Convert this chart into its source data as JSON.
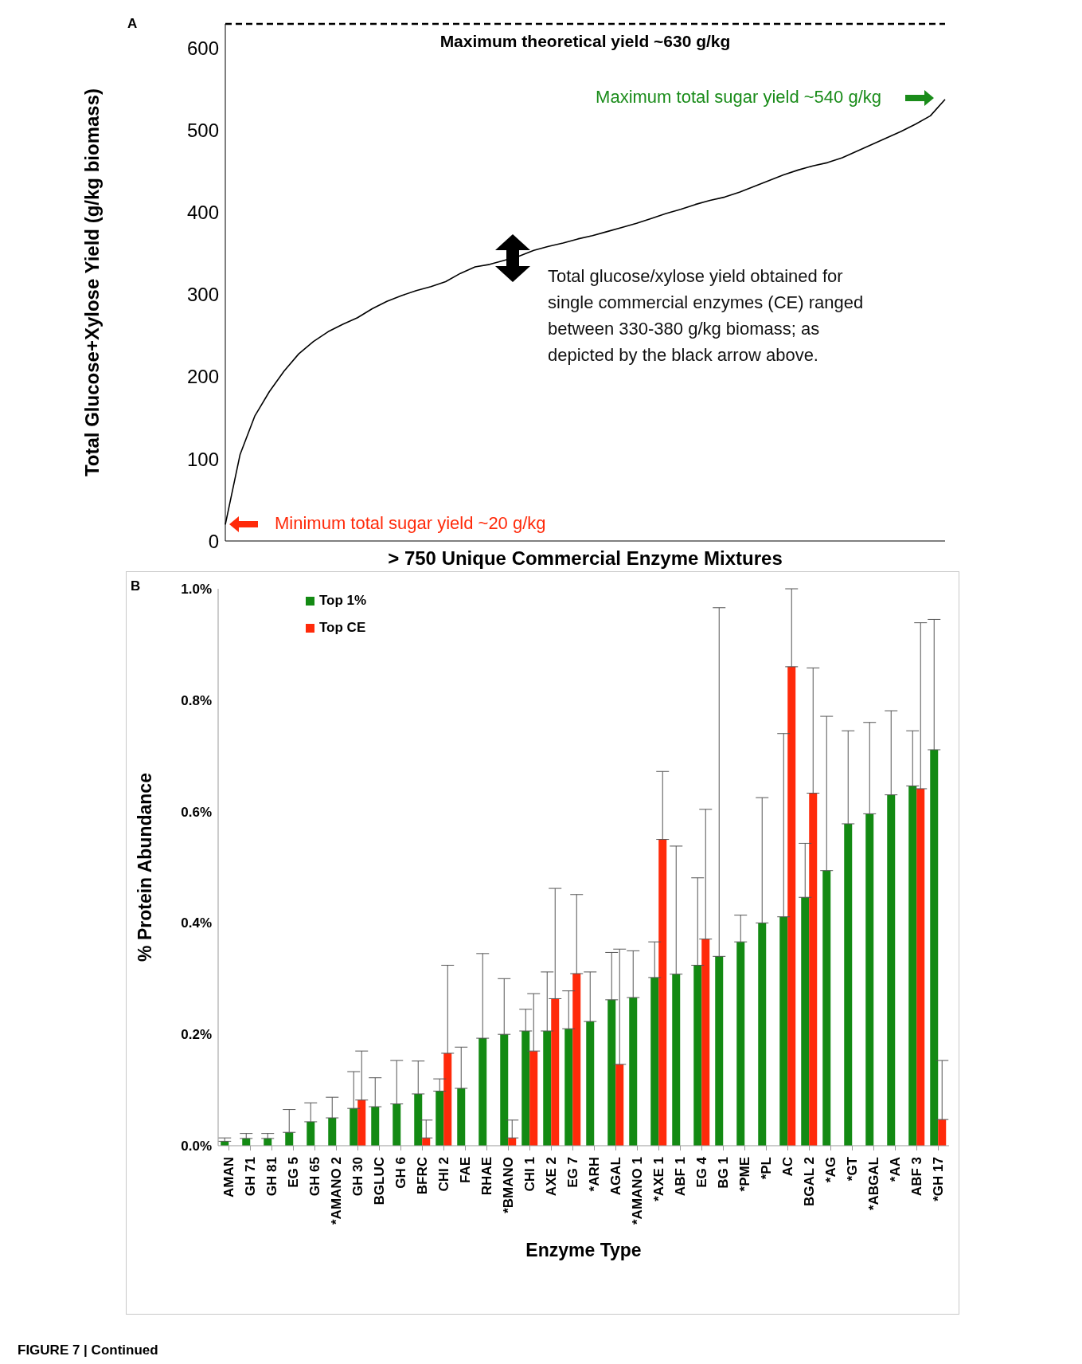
{
  "chart_data": [
    {
      "type": "line",
      "title": "A",
      "xlabel": "> 750 Unique Commercial Enzyme Mixtures",
      "ylabel": "Total Glucose+Xylose Yield (g/kg biomass)",
      "categories": [
        null,
        null,
        null,
        null,
        null,
        null,
        null,
        null,
        null,
        null,
        null,
        null,
        null,
        null,
        null,
        null,
        null,
        null,
        null,
        null,
        null,
        null,
        null,
        null,
        null,
        null,
        null,
        null,
        null,
        null,
        null,
        null,
        null,
        null,
        null,
        null,
        null,
        null,
        null,
        null,
        null,
        null,
        null,
        null,
        null,
        null,
        null,
        null,
        null,
        null
      ],
      "series": [
        {
          "color": "#000000",
          "values": [
            20,
            105,
            152,
            182,
            207,
            228,
            243,
            255,
            264,
            272,
            283,
            292,
            299,
            305,
            310,
            316,
            326,
            334,
            337,
            342,
            347,
            354,
            359,
            363,
            368,
            372,
            377,
            382,
            387,
            393,
            399,
            404,
            410,
            415,
            419,
            425,
            432,
            439,
            446,
            452,
            457,
            461,
            467,
            475,
            483,
            491,
            499,
            508,
            518,
            538
          ]
        }
      ],
      "ylim": [
        0,
        630
      ],
      "yticks": [
        0,
        100,
        200,
        300,
        400,
        500,
        600
      ],
      "marker": "none",
      "line_style": "solid",
      "ref_lines": [
        {
          "axis": "y",
          "value": 630,
          "label": "Maximum theoretical yield ~630 g/kg",
          "color": "#000000",
          "line_style": "dashed"
        }
      ],
      "annotations": [
        "Maximum total sugar yield ~540 g/kg",
        "Total glucose/xylose yield obtained for single commercial enzymes (CE) ranged between 330-380 g/kg biomass; as depicted by the black arrow above.",
        "Minimum total sugar yield ~20 g/kg"
      ]
    },
    {
      "type": "bar",
      "title": "B",
      "xlabel": "Enzyme Type",
      "ylabel": "% Protein Abundance",
      "categories": [
        "AMAN",
        "GH 71",
        "GH 81",
        "EG 5",
        "GH 65",
        "*AMANO 2",
        "GH 30",
        "BGLUC",
        "GH 6",
        "BFRC",
        "CHI 2",
        "FAE",
        "RHAE",
        "*BMANO",
        "CHI 1",
        "AXE 2",
        "EG 7",
        "*ARH",
        "AGAL",
        "*AMANO 1",
        "*AXE 1",
        "ABF 1",
        "EG 4",
        "BG 1",
        "*PME",
        "*PL",
        "AC",
        "BGAL 2",
        "*AG",
        "*GT",
        "*ABGAL",
        "*AA",
        "ABF 3",
        "*GH 17"
      ],
      "series": [
        {
          "name": "Top 1%",
          "color": "#138a13",
          "values": [
            0.008,
            0.013,
            0.013,
            0.024,
            0.043,
            0.05,
            0.067,
            0.07,
            0.075,
            0.093,
            0.098,
            0.103,
            0.193,
            0.2,
            0.206,
            0.206,
            0.21,
            0.223,
            0.262,
            0.266,
            0.302,
            0.308,
            0.324,
            0.34,
            0.366,
            0.4,
            0.411,
            0.446,
            0.494,
            0.578,
            0.596,
            0.63,
            0.646,
            0.711
          ],
          "errors": [
            [
              0.008,
              0.014
            ],
            [
              0.013,
              0.022
            ],
            [
              0.013,
              0.022
            ],
            [
              0.024,
              0.065
            ],
            [
              0.043,
              0.077
            ],
            [
              0.05,
              0.087
            ],
            [
              0.067,
              0.133
            ],
            [
              0.07,
              0.122
            ],
            [
              0.075,
              0.153
            ],
            [
              0.093,
              0.152
            ],
            [
              0.098,
              0.12
            ],
            [
              0.103,
              0.177
            ],
            [
              0.193,
              0.345
            ],
            [
              0.2,
              0.3
            ],
            [
              0.206,
              0.245
            ],
            [
              0.206,
              0.312
            ],
            [
              0.21,
              0.278
            ],
            [
              0.223,
              0.312
            ],
            [
              0.262,
              0.347
            ],
            [
              0.266,
              0.35
            ],
            [
              0.302,
              0.366
            ],
            [
              0.308,
              0.538
            ],
            [
              0.324,
              0.481
            ],
            [
              0.34,
              0.966
            ],
            [
              0.366,
              0.414
            ],
            [
              0.4,
              0.625
            ],
            [
              0.411,
              0.74
            ],
            [
              0.446,
              0.543
            ],
            [
              0.494,
              0.771
            ],
            [
              0.578,
              0.745
            ],
            [
              0.596,
              0.76
            ],
            [
              0.63,
              0.781
            ],
            [
              0.646,
              0.745
            ],
            [
              0.711,
              0.945
            ]
          ]
        },
        {
          "name": "Top CE",
          "color": "#ff2a0a",
          "values": [
            0,
            0,
            0,
            0,
            0,
            0,
            0.082,
            0,
            0,
            0.014,
            0.166,
            0,
            0,
            0.014,
            0.17,
            0.264,
            0.309,
            0,
            0.146,
            0,
            0.55,
            0,
            0.371,
            0,
            0,
            0,
            0.86,
            0.633,
            0,
            0,
            0,
            0,
            0.641,
            0.047
          ],
          "errors": [
            null,
            null,
            null,
            null,
            null,
            null,
            [
              0.082,
              0.17
            ],
            null,
            null,
            [
              0.014,
              0.046
            ],
            [
              0.166,
              0.324
            ],
            null,
            null,
            [
              0.014,
              0.046
            ],
            [
              0.17,
              0.273
            ],
            [
              0.264,
              0.462
            ],
            [
              0.309,
              0.451
            ],
            null,
            [
              0.146,
              0.353
            ],
            null,
            [
              0.55,
              0.672
            ],
            null,
            [
              0.371,
              0.604
            ],
            null,
            null,
            null,
            [
              0.86,
              1.0
            ],
            [
              0.633,
              0.858
            ],
            null,
            null,
            null,
            null,
            [
              0.641,
              0.939
            ],
            [
              0.047,
              0.153
            ]
          ]
        }
      ],
      "ylim": [
        0,
        1.0
      ],
      "yticks": [
        {
          "value": 0,
          "label": "0.0%"
        },
        {
          "value": 0.2,
          "label": "0.2%"
        },
        {
          "value": 0.4,
          "label": "0.4%"
        },
        {
          "value": 0.6,
          "label": "0.6%"
        },
        {
          "value": 0.8,
          "label": "0.8%"
        },
        {
          "value": 1.0,
          "label": "1.0%"
        }
      ],
      "legend": "top left",
      "annotations": [
        "FIGURE 7 | Continued"
      ]
    }
  ]
}
